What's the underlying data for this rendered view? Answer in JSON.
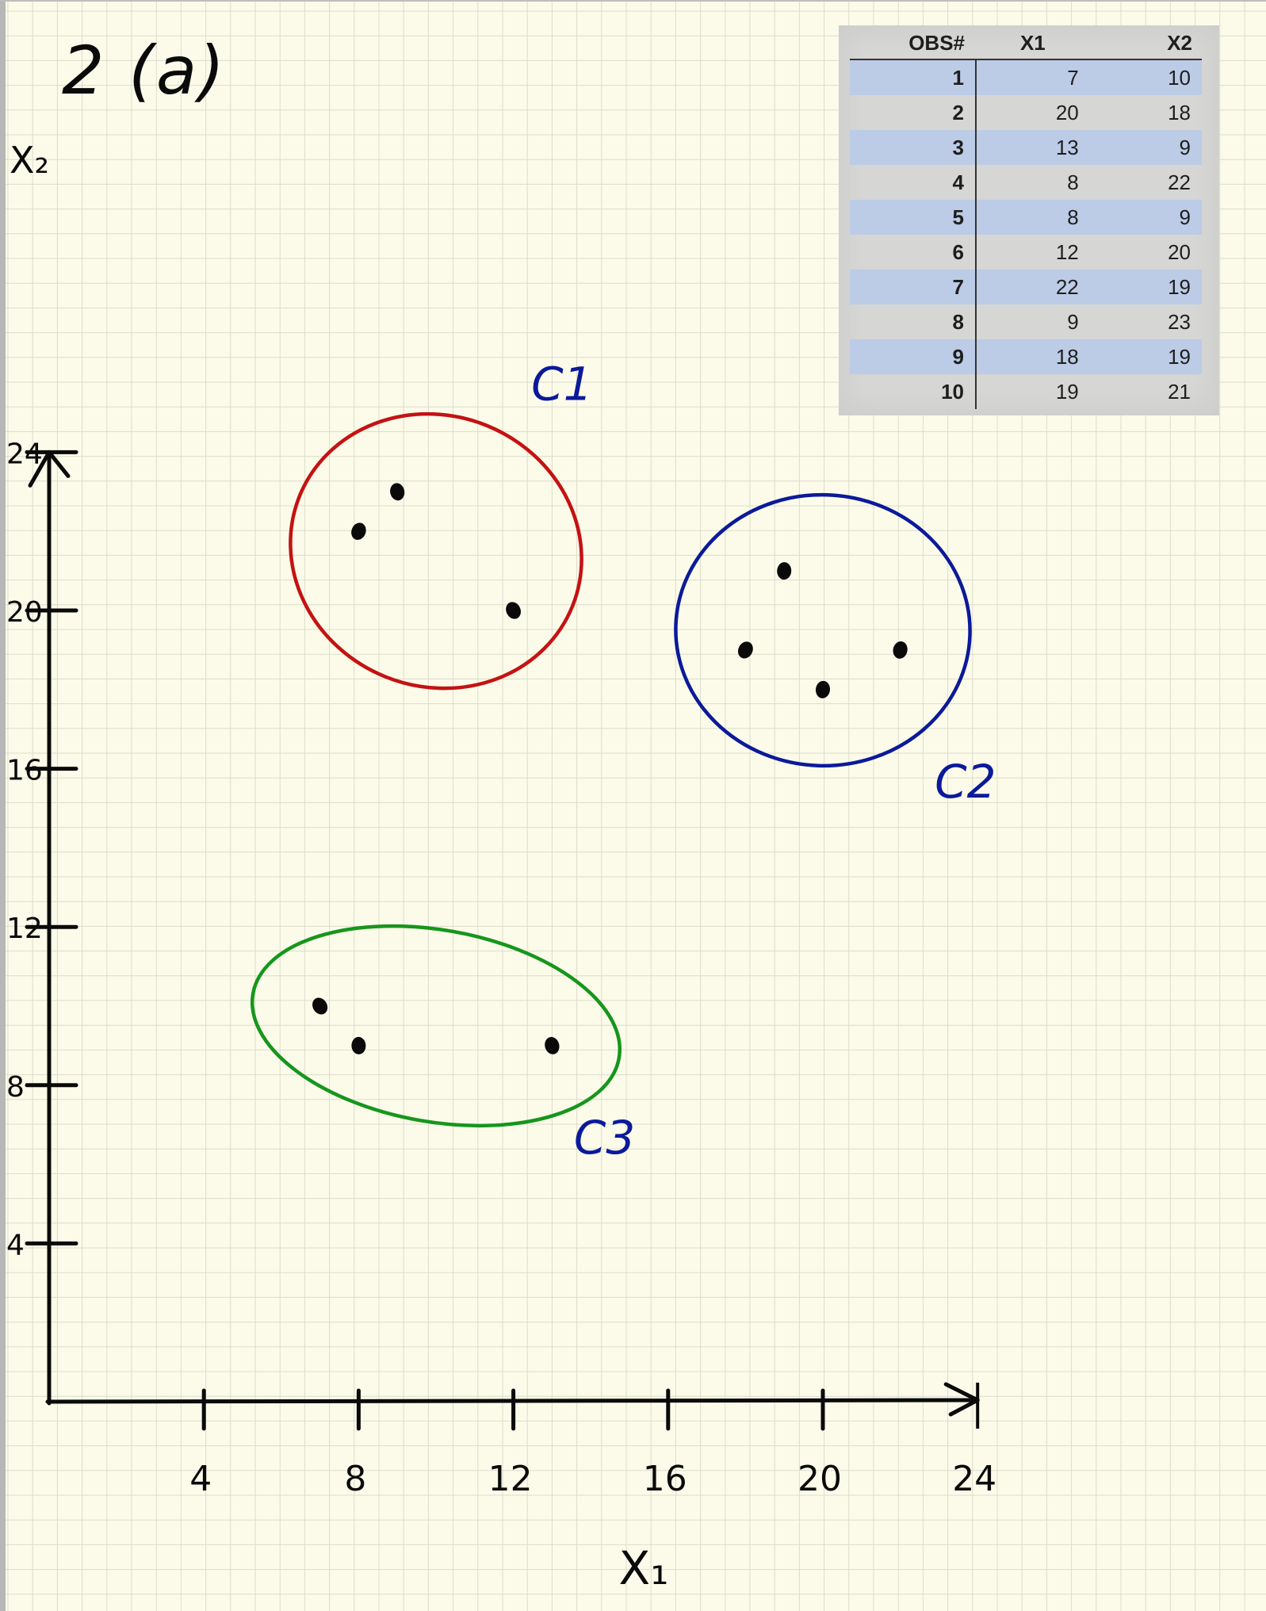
{
  "problem_label": "2 (a)",
  "table": {
    "headers": [
      "OBS#",
      "X1",
      "X2"
    ],
    "rows": [
      [
        "1",
        "7",
        "10"
      ],
      [
        "2",
        "20",
        "18"
      ],
      [
        "3",
        "13",
        "9"
      ],
      [
        "4",
        "8",
        "22"
      ],
      [
        "5",
        "8",
        "9"
      ],
      [
        "6",
        "12",
        "20"
      ],
      [
        "7",
        "22",
        "19"
      ],
      [
        "8",
        "9",
        "23"
      ],
      [
        "9",
        "18",
        "19"
      ],
      [
        "10",
        "19",
        "21"
      ]
    ]
  },
  "colors": {
    "paper": "#fcfbea",
    "grid": "#dcdccc",
    "ink": "#0a0a0a",
    "c1": "#c41212",
    "c2": "#0b1a9a",
    "c3": "#16961c",
    "label_ink": "#0b1a9a",
    "table_band": "#bccbe6"
  },
  "chart_data": {
    "type": "scatter",
    "xlabel": "X₁",
    "ylabel": "X₂",
    "xlim": [
      0,
      24
    ],
    "ylim": [
      0,
      24
    ],
    "x_ticks": [
      "4",
      "8",
      "12",
      "16",
      "20",
      "24"
    ],
    "y_ticks": [
      "4",
      "8",
      "12",
      "16",
      "20",
      "24"
    ],
    "points": [
      {
        "x": 7,
        "y": 10
      },
      {
        "x": 20,
        "y": 18
      },
      {
        "x": 13,
        "y": 9
      },
      {
        "x": 8,
        "y": 22
      },
      {
        "x": 8,
        "y": 9
      },
      {
        "x": 12,
        "y": 20
      },
      {
        "x": 22,
        "y": 19
      },
      {
        "x": 9,
        "y": 23
      },
      {
        "x": 18,
        "y": 19
      },
      {
        "x": 19,
        "y": 21
      }
    ],
    "clusters": [
      {
        "label": "C1",
        "color": "#c41212",
        "members": [
          4,
          6,
          8
        ]
      },
      {
        "label": "C2",
        "color": "#0b1a9a",
        "members": [
          2,
          7,
          9,
          10
        ]
      },
      {
        "label": "C3",
        "color": "#16961c",
        "members": [
          1,
          3,
          5
        ]
      }
    ]
  }
}
